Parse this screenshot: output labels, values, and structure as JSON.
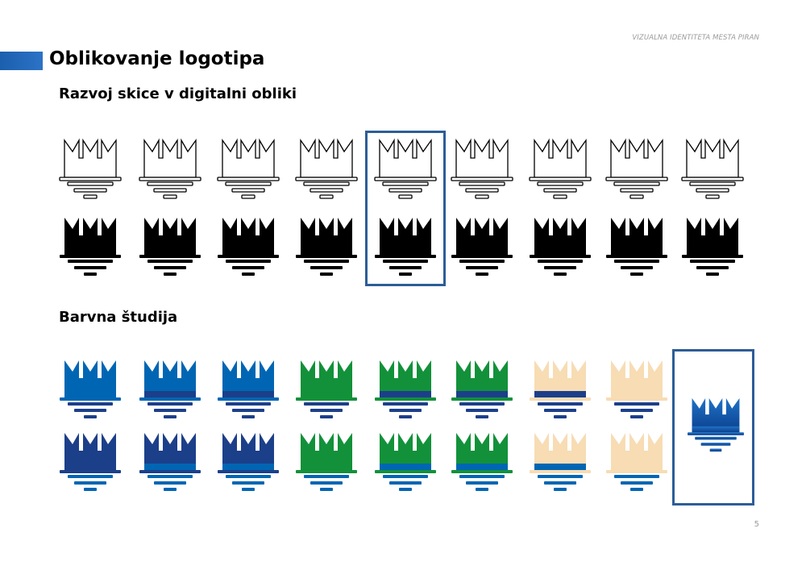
{
  "header": {
    "running_title": "VIZUALNA IDENTITETA MESTA PIRAN",
    "title": "Oblikovanje logotipa",
    "page_number": "5"
  },
  "sections": [
    {
      "heading": "Razvoj skice v digitalni obliki"
    },
    {
      "heading": "Barvna študija"
    }
  ],
  "colors": {
    "accent": "#1b5fae",
    "blue": "#0066b3",
    "dark_blue": "#1c3f8a",
    "green": "#12913a",
    "beige": "#f7dcb4",
    "black": "#000000",
    "frame": "#2d5d98"
  },
  "sketch_rows": [
    {
      "style": "outline",
      "count": 9,
      "selected_index": 4
    },
    {
      "style": "filled",
      "count": 9,
      "selected_index": 4
    }
  ],
  "color_study": {
    "rows": [
      [
        {
          "top": "#0066b3",
          "band": "#0066b3",
          "lower": "#1c3f8a"
        },
        {
          "top": "#0066b3",
          "band": "#1c3f8a",
          "lower": "#1c3f8a"
        },
        {
          "top": "#0066b3",
          "band": "#1c3f8a",
          "lower": "#1c3f8a"
        },
        {
          "top": "#12913a",
          "band": "#12913a",
          "lower": "#1c3f8a"
        },
        {
          "top": "#12913a",
          "band": "#1c3f8a",
          "lower": "#1c3f8a"
        },
        {
          "top": "#12913a",
          "band": "#1c3f8a",
          "lower": "#1c3f8a"
        },
        {
          "top": "#f7dcb4",
          "band": "#1c3f8a",
          "lower": "#1c3f8a"
        },
        {
          "top": "#f7dcb4",
          "band": "#f7dcb4",
          "lower": "#1c3f8a"
        }
      ],
      [
        {
          "top": "#1c3f8a",
          "band": "#1c3f8a",
          "lower": "#0066b3"
        },
        {
          "top": "#1c3f8a",
          "band": "#0066b3",
          "lower": "#0066b3"
        },
        {
          "top": "#1c3f8a",
          "band": "#0066b3",
          "lower": "#0066b3"
        },
        {
          "top": "#12913a",
          "band": "#12913a",
          "lower": "#0066b3"
        },
        {
          "top": "#12913a",
          "band": "#0066b3",
          "lower": "#0066b3"
        },
        {
          "top": "#12913a",
          "band": "#0066b3",
          "lower": "#0066b3"
        },
        {
          "top": "#f7dcb4",
          "band": "#0066b3",
          "lower": "#0066b3"
        },
        {
          "top": "#f7dcb4",
          "band": "#f7dcb4",
          "lower": "#0066b3"
        }
      ]
    ],
    "final": {
      "gradient": [
        "#1e72c8",
        "#0c3f8c"
      ]
    }
  }
}
